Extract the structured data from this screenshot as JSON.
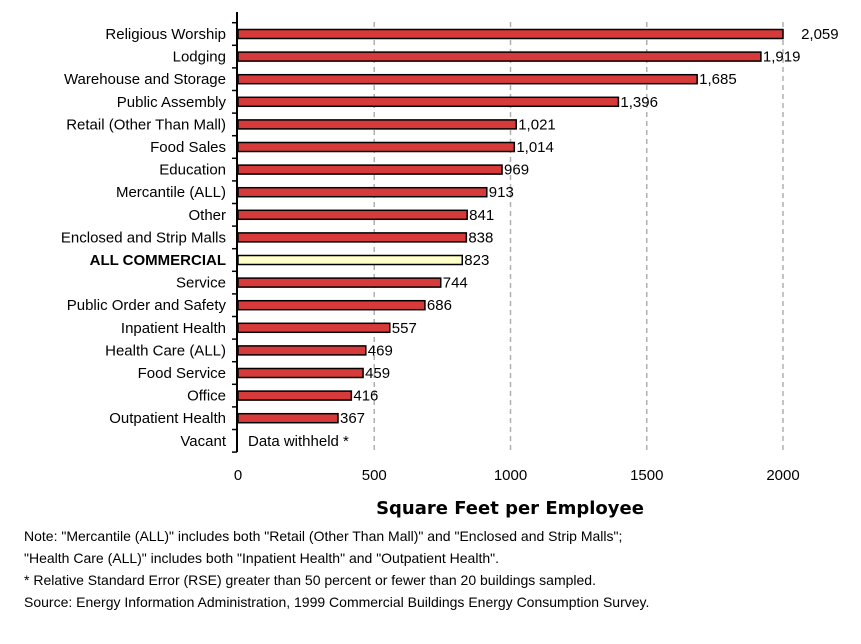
{
  "chart_data": {
    "type": "bar",
    "orientation": "horizontal",
    "title": "",
    "xlabel": "Square Feet per Employee",
    "ylabel": "",
    "xlim": [
      0,
      2000
    ],
    "xticks": [
      "0",
      "500",
      "1000",
      "1500",
      "2000"
    ],
    "grid": "vertical dashed",
    "categories": [
      "Religious Worship",
      "Lodging",
      "Warehouse and Storage",
      "Public Assembly",
      "Retail (Other Than Mall)",
      "Food Sales",
      "Education",
      "Mercantile (ALL)",
      "Other",
      "Enclosed and Strip Malls",
      "ALL COMMERCIAL",
      "Service",
      "Public Order and Safety",
      "Inpatient Health",
      "Health Care (ALL)",
      "Food Service",
      "Office",
      "Outpatient Health",
      "Vacant"
    ],
    "values": [
      2059,
      1919,
      1685,
      1396,
      1021,
      1014,
      969,
      913,
      841,
      838,
      823,
      744,
      686,
      557,
      469,
      459,
      416,
      367,
      null
    ],
    "data_labels": [
      "2,059",
      "1,919",
      "1,685",
      "1,396",
      "1,021",
      "1,014",
      "969",
      "913",
      "841",
      "838",
      "823",
      "744",
      "686",
      "557",
      "469",
      "459",
      "416",
      "367",
      "Data withheld *"
    ],
    "highlight_category": "ALL COMMERCIAL",
    "colors": {
      "bar": "#d63a3a",
      "highlight": "#ffffc8",
      "outline": "#000000",
      "grid": "#b0b0b0"
    }
  },
  "notes": [
    "Note: \"Mercantile (ALL)\" includes both \"Retail (Other Than Mall)\" and \"Enclosed and Strip Malls\";",
    "\"Health Care (ALL)\" includes both \"Inpatient Health\" and \"Outpatient Health\".",
    "* Relative Standard Error (RSE) greater than 50 percent or fewer than 20 buildings sampled.",
    "Source: Energy Information Administration, 1999 Commercial Buildings Energy Consumption Survey."
  ]
}
